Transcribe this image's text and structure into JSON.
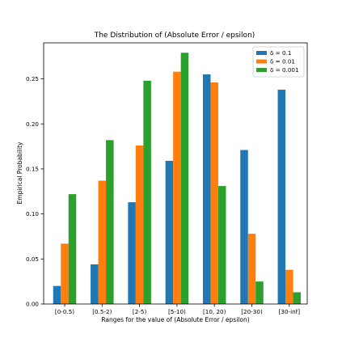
{
  "chart_data": {
    "type": "bar",
    "title": "The Distribution of (Absolute Error / epsilon)",
    "xlabel": "Ranges for the value of (Absolute Error / epsilon)",
    "ylabel": "Empirical Probability",
    "categories": [
      "[0-0.5)",
      "[0.5-2)",
      "[2-5)",
      "[5-10)",
      "[10, 20)",
      "[20-30)",
      "[30-inf]"
    ],
    "series": [
      {
        "name": "δ = 0.1",
        "color": "#1f77b4",
        "values": [
          0.02,
          0.044,
          0.113,
          0.159,
          0.255,
          0.171,
          0.238
        ]
      },
      {
        "name": "δ = 0.01",
        "color": "#ff7f0e",
        "values": [
          0.067,
          0.137,
          0.176,
          0.258,
          0.246,
          0.078,
          0.038
        ]
      },
      {
        "name": "δ = 0.001",
        "color": "#2ca02c",
        "values": [
          0.122,
          0.182,
          0.248,
          0.279,
          0.131,
          0.025,
          0.013
        ]
      }
    ],
    "ylim": [
      0,
      0.29
    ],
    "yticks": [
      "0.00",
      "0.05",
      "0.10",
      "0.15",
      "0.20",
      "0.25"
    ],
    "legend_position": "top-right",
    "grid": false
  }
}
